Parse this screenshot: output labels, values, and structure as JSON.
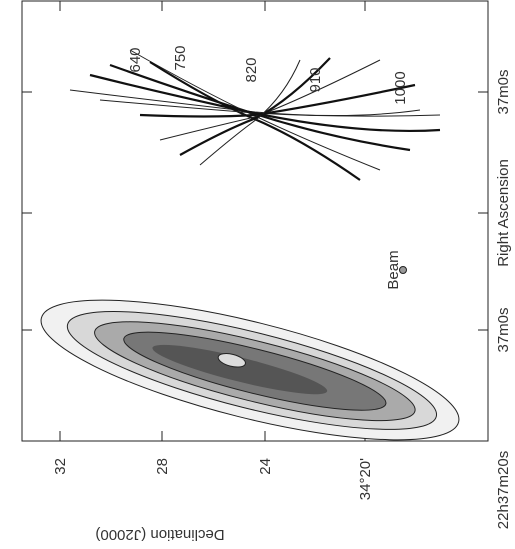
{
  "axes": {
    "ylabel": "Declination (J2000)",
    "xlabel": "Right Ascension",
    "dec_ticks": [
      "32",
      "28",
      "24",
      "34°20'"
    ],
    "ra_ticks": [
      "37m0s",
      "37m0s",
      "22h37m20s"
    ]
  },
  "velocity_labels": [
    "640",
    "750",
    "820",
    "910",
    "1000"
  ],
  "beam": "Beam"
}
